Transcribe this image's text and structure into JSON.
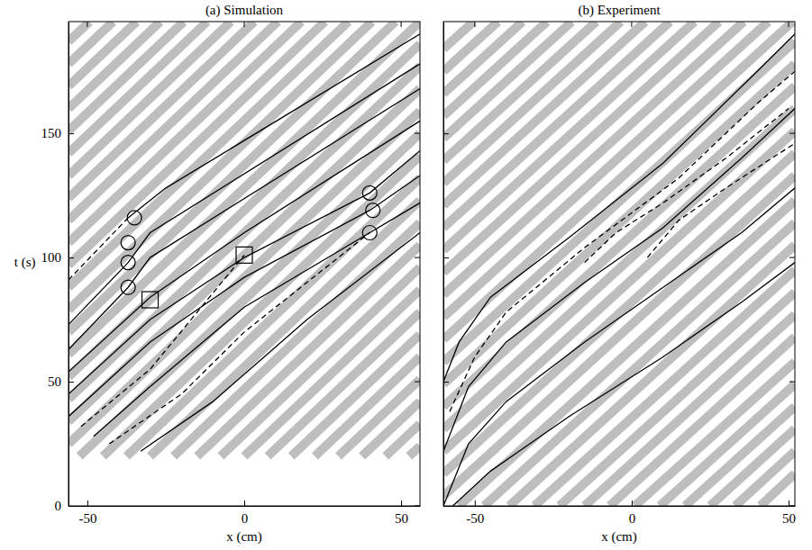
{
  "chart_data": [
    {
      "type": "spacetime",
      "title": "(a) Simulation",
      "x_label": "x (cm)",
      "y_label": "t (s)",
      "xlim": [
        -56,
        56
      ],
      "ylim": [
        0,
        195
      ],
      "xticks": [
        -50,
        0,
        50
      ],
      "yticks": [
        0,
        50,
        100,
        150
      ],
      "grid": false,
      "bands": {
        "color": "#bebebe",
        "x0": [
          -56,
          -56,
          -56,
          -56,
          -56,
          -56,
          -56,
          -56,
          -56,
          -56,
          -56,
          -56,
          -56,
          -56,
          -56,
          -56,
          -56,
          -56,
          -56,
          -52.5,
          -45,
          -37.5,
          -30,
          -22.5,
          -15,
          -7.5,
          0,
          7.5,
          15,
          22.5,
          30,
          37.5,
          45,
          52.5
        ],
        "y0": [
          25,
          34,
          43,
          52,
          61,
          70,
          79,
          88,
          97,
          106,
          115,
          124,
          133,
          142,
          151,
          160,
          169,
          178,
          187,
          20,
          20,
          20,
          20,
          20,
          20,
          20,
          20,
          20,
          20,
          20,
          20,
          20,
          20,
          20
        ],
        "x1": [
          56,
          56,
          56,
          56,
          56,
          48.2,
          40.7,
          33.2,
          25.7,
          18.2,
          10.7,
          3.2,
          -4.3,
          -11.8,
          -19.3,
          -26.8,
          -34.3,
          -41.8,
          -49.3,
          56,
          56,
          56,
          56,
          56,
          56,
          56,
          56,
          56,
          56,
          56,
          56,
          56,
          56,
          56
        ],
        "y1": [
          159,
          168,
          177,
          186,
          195,
          195,
          195,
          195,
          195,
          195,
          195,
          195,
          195,
          195,
          195,
          195,
          195,
          195,
          195,
          150,
          141,
          132,
          123,
          114,
          105,
          96,
          87,
          78,
          69,
          60,
          51,
          42,
          33,
          24
        ]
      },
      "series": [
        {
          "type": "line",
          "line_style": "dashed",
          "color": "#000000",
          "x": [
            -56,
            -37
          ],
          "y": [
            91,
            116
          ]
        },
        {
          "type": "line",
          "line_style": "solid",
          "color": "#000000",
          "x": [
            -37,
            -25,
            56
          ],
          "y": [
            116,
            128,
            190
          ]
        },
        {
          "type": "line",
          "line_style": "solid",
          "color": "#000000",
          "x": [
            -56,
            -37,
            -30,
            56
          ],
          "y": [
            73,
            98,
            110,
            178
          ]
        },
        {
          "type": "line",
          "line_style": "solid",
          "color": "#000000",
          "x": [
            -56,
            -37,
            -30,
            56
          ],
          "y": [
            63,
            88,
            100,
            168
          ]
        },
        {
          "type": "line",
          "line_style": "solid",
          "color": "#000000",
          "x": [
            -56,
            -30,
            0,
            56
          ],
          "y": [
            54,
            84,
            110,
            155
          ]
        },
        {
          "type": "line",
          "line_style": "solid",
          "color": "#000000",
          "x": [
            -56,
            -30,
            0,
            40,
            56
          ],
          "y": [
            45,
            75,
            100,
            126,
            143
          ]
        },
        {
          "type": "line",
          "line_style": "solid",
          "color": "#000000",
          "x": [
            -56,
            -30,
            0,
            40,
            56
          ],
          "y": [
            36,
            66,
            92,
            119,
            133
          ]
        },
        {
          "type": "line",
          "line_style": "dashed",
          "color": "#000000",
          "x": [
            -52,
            -30,
            0
          ],
          "y": [
            32,
            55,
            101
          ]
        },
        {
          "type": "line",
          "line_style": "solid",
          "color": "#000000",
          "x": [
            -48,
            -30,
            0,
            40,
            56
          ],
          "y": [
            28,
            48,
            80,
            110,
            122
          ]
        },
        {
          "type": "line",
          "line_style": "dashed",
          "color": "#000000",
          "x": [
            -43,
            -20,
            0,
            40
          ],
          "y": [
            25,
            45,
            70,
            110
          ]
        },
        {
          "type": "line",
          "line_style": "solid",
          "color": "#000000",
          "x": [
            -33,
            -10,
            20,
            56
          ],
          "y": [
            22,
            42,
            75,
            110
          ]
        },
        {
          "type": "scatter",
          "marker": "circle",
          "color": "#000000",
          "x": [
            -37,
            -37,
            -37,
            -35,
            40,
            41,
            40
          ],
          "y": [
            88,
            98,
            106,
            116,
            110,
            119,
            126
          ]
        },
        {
          "type": "scatter",
          "marker": "square",
          "color": "#000000",
          "x": [
            -30,
            0
          ],
          "y": [
            83,
            101
          ]
        }
      ]
    },
    {
      "type": "spacetime",
      "title": "(b) Experiment",
      "x_label": "x (cm)",
      "xlim": [
        -60,
        52
      ],
      "ylim": [
        0,
        195
      ],
      "xticks": [
        -50,
        0,
        50
      ],
      "yticks": [
        0,
        50,
        100,
        150
      ],
      "grid": false,
      "tick_labels": "x",
      "bands": {
        "color": "#bebebe",
        "x0": [
          -60,
          -60,
          -60,
          -60,
          -60,
          -60,
          -60,
          -60,
          -60,
          -60,
          -60,
          -60,
          -60,
          -60,
          -60,
          -60,
          -60,
          -60,
          -60,
          -60,
          -60,
          -55,
          -47,
          -39,
          -31,
          -23,
          -15,
          -7,
          1,
          9,
          17,
          25,
          33,
          41
        ],
        "y0": [
          4,
          13,
          22,
          31,
          40,
          49,
          58,
          67,
          76,
          85,
          94,
          103,
          112,
          121,
          130,
          139,
          148,
          157,
          166,
          175,
          184,
          0,
          0,
          0,
          0,
          0,
          0,
          0,
          0,
          0,
          0,
          0,
          0,
          0
        ],
        "x1": [
          52,
          52,
          52,
          52,
          52,
          52,
          52,
          51.3,
          43.5,
          35.7,
          27.8,
          20,
          12.2,
          4.3,
          -3.5,
          -11.3,
          -19.1,
          -27,
          -34.8,
          -42.6,
          -50.4,
          52,
          52,
          52,
          52,
          52,
          52,
          52,
          52,
          52,
          52,
          52,
          52,
          52
        ],
        "y1": [
          133,
          142,
          151,
          160,
          169,
          178,
          187,
          195,
          195,
          195,
          195,
          195,
          195,
          195,
          195,
          195,
          195,
          195,
          195,
          195,
          195,
          123,
          114,
          105,
          95,
          86,
          77,
          68,
          58,
          49,
          40,
          31,
          22,
          13
        ]
      },
      "series": [
        {
          "type": "line",
          "line_style": "solid",
          "color": "#000000",
          "x": [
            -60,
            -55,
            -45,
            -20,
            10,
            40,
            52
          ],
          "y": [
            50,
            66,
            84,
            108,
            138,
            175,
            190
          ]
        },
        {
          "type": "line",
          "line_style": "dashed",
          "color": "#000000",
          "x": [
            -58,
            -50,
            -40,
            -15,
            15,
            40,
            52
          ],
          "y": [
            38,
            60,
            78,
            104,
            132,
            162,
            175
          ]
        },
        {
          "type": "line",
          "line_style": "solid",
          "color": "#000000",
          "x": [
            -60,
            -52,
            -40,
            -15,
            10,
            35,
            52
          ],
          "y": [
            22,
            48,
            66,
            90,
            112,
            140,
            160
          ]
        },
        {
          "type": "line",
          "line_style": "solid",
          "color": "#000000",
          "x": [
            -60,
            -52,
            -40,
            -15,
            10,
            35,
            52
          ],
          "y": [
            0,
            25,
            42,
            66,
            88,
            110,
            128
          ]
        },
        {
          "type": "line",
          "line_style": "solid",
          "color": "#000000",
          "x": [
            -57,
            -45,
            -20,
            10,
            35,
            52
          ],
          "y": [
            0,
            14,
            36,
            60,
            82,
            98
          ]
        },
        {
          "type": "line",
          "line_style": "dashed",
          "color": "#000000",
          "x": [
            -15,
            -5,
            10,
            30,
            50
          ],
          "y": [
            98,
            110,
            122,
            140,
            160
          ]
        },
        {
          "type": "line",
          "line_style": "dashed",
          "color": "#000000",
          "x": [
            5,
            15,
            30,
            52
          ],
          "y": [
            100,
            115,
            128,
            146
          ]
        }
      ]
    }
  ]
}
